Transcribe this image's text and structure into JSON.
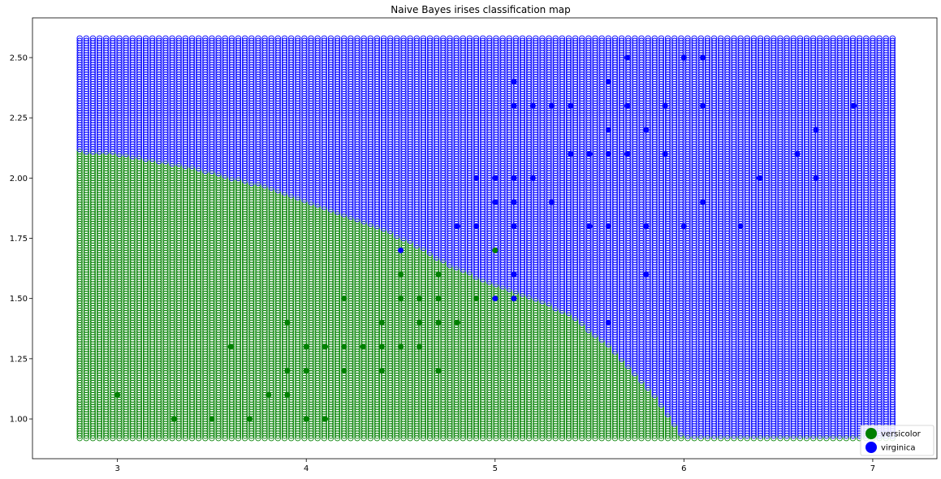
{
  "chart_data": {
    "type": "scatter",
    "title": "Naive Bayes irises classification map",
    "xlabel": "",
    "ylabel": "",
    "xlim": [
      2.55,
      7.34
    ],
    "ylim": [
      0.835,
      2.665
    ],
    "x_ticks": [
      3,
      4,
      5,
      6,
      7
    ],
    "y_ticks": [
      1.0,
      1.25,
      1.5,
      1.75,
      2.0,
      2.25,
      2.5
    ],
    "x_tick_labels": [
      "3",
      "4",
      "5",
      "6",
      "7"
    ],
    "y_tick_labels": [
      "1.00",
      "1.25",
      "1.50",
      "1.75",
      "2.00",
      "2.25",
      "2.50"
    ],
    "grid": false,
    "legend_position": "bottom-right",
    "colors": {
      "versicolor": "#008000",
      "virginica": "#0000ff"
    },
    "decision_grid": {
      "x_range": [
        2.8,
        7.1
      ],
      "y_range": [
        0.92,
        2.58
      ],
      "x_step": 0.035,
      "y_step": 0.01,
      "marker": "open-circle",
      "boundary_y_by_x": [
        [
          2.8,
          2.11
        ],
        [
          3.0,
          2.1
        ],
        [
          3.2,
          2.07
        ],
        [
          3.4,
          2.04
        ],
        [
          3.6,
          2.0
        ],
        [
          3.8,
          1.96
        ],
        [
          4.0,
          1.9
        ],
        [
          4.2,
          1.84
        ],
        [
          4.4,
          1.79
        ],
        [
          4.6,
          1.71
        ],
        [
          4.8,
          1.62
        ],
        [
          5.0,
          1.56
        ],
        [
          5.2,
          1.5
        ],
        [
          5.4,
          1.43
        ],
        [
          5.6,
          1.3
        ],
        [
          5.8,
          1.14
        ],
        [
          6.0,
          0.92
        ],
        [
          7.1,
          0.92
        ]
      ]
    },
    "series": [
      {
        "name": "versicolor",
        "color": "#008000",
        "x": [
          3.0,
          3.3,
          3.5,
          3.7,
          3.6,
          3.8,
          3.9,
          3.9,
          3.9,
          4.0,
          4.0,
          4.0,
          4.1,
          4.1,
          4.2,
          4.2,
          4.2,
          4.3,
          4.4,
          4.4,
          4.4,
          4.5,
          4.5,
          4.5,
          4.6,
          4.6,
          4.6,
          4.7,
          4.7,
          4.7,
          4.7,
          4.8,
          4.9,
          5.0
        ],
        "y": [
          1.1,
          1.0,
          1.0,
          1.0,
          1.3,
          1.1,
          1.1,
          1.2,
          1.4,
          1.0,
          1.2,
          1.3,
          1.0,
          1.3,
          1.2,
          1.3,
          1.5,
          1.3,
          1.2,
          1.3,
          1.4,
          1.3,
          1.5,
          1.6,
          1.3,
          1.4,
          1.5,
          1.2,
          1.4,
          1.5,
          1.6,
          1.4,
          1.5,
          1.7
        ]
      },
      {
        "name": "virginica",
        "color": "#0000ff",
        "x": [
          4.5,
          4.8,
          4.9,
          4.9,
          5.0,
          5.0,
          5.0,
          5.1,
          5.1,
          5.1,
          5.1,
          5.1,
          5.1,
          5.1,
          5.1,
          5.2,
          5.2,
          5.3,
          5.3,
          5.4,
          5.4,
          5.5,
          5.5,
          5.6,
          5.6,
          5.6,
          5.6,
          5.6,
          5.6,
          5.7,
          5.7,
          5.7,
          5.8,
          5.8,
          5.8,
          5.9,
          5.9,
          6.0,
          6.0,
          6.1,
          6.1,
          6.1,
          6.3,
          6.4,
          6.6,
          6.7,
          6.7,
          6.9
        ],
        "y": [
          1.7,
          1.8,
          1.8,
          2.0,
          1.5,
          1.9,
          2.0,
          1.5,
          1.6,
          1.8,
          1.9,
          2.0,
          2.3,
          2.4,
          1.5,
          2.0,
          2.3,
          1.9,
          2.3,
          2.1,
          2.3,
          1.8,
          2.1,
          1.4,
          1.8,
          2.1,
          2.2,
          2.4,
          1.8,
          2.1,
          2.3,
          2.5,
          1.6,
          1.8,
          2.2,
          2.1,
          2.3,
          1.8,
          2.5,
          1.9,
          2.3,
          2.5,
          1.8,
          2.0,
          2.1,
          2.0,
          2.2,
          2.3
        ]
      }
    ],
    "legend": [
      "versicolor",
      "virginica"
    ]
  }
}
